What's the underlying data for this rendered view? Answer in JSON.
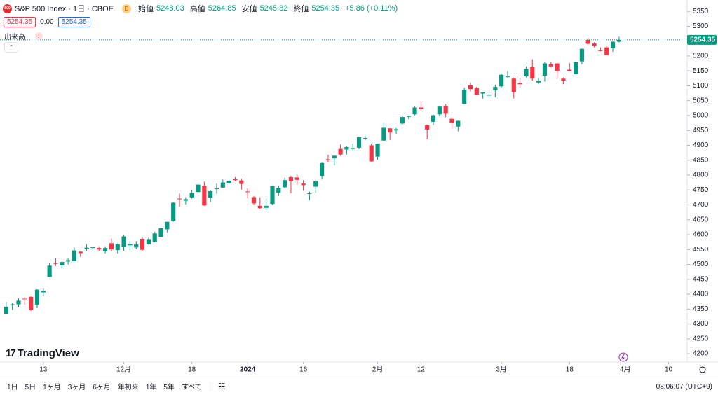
{
  "ui": {
    "symbol_icon": "500",
    "symbol": "S&P 500 Index · 1日 · CBOE",
    "badge": "D",
    "ohlc_labels": [
      "始値",
      "高値",
      "安値",
      "終値"
    ],
    "change": "+5.86 (+0.11%)",
    "price_boxes": [
      "5254.35",
      "0.00",
      "5254.35"
    ],
    "volume_label": "出来高",
    "alert": "!",
    "logo": "TradingView",
    "ranges": [
      "1日",
      "5日",
      "1ヶ月",
      "3ヶ月",
      "6ヶ月",
      "年初来",
      "1年",
      "5年",
      "すべて"
    ],
    "clock": "08:06:07 (UTC+9)"
  },
  "chart_data": {
    "type": "candlestick",
    "up_color": "#089981",
    "down_color": "#f23645",
    "grid": false,
    "ylim": [
      4172,
      5388
    ],
    "yticks": [
      4200,
      4250,
      4300,
      4350,
      4400,
      4450,
      4500,
      4550,
      4600,
      4650,
      4700,
      4750,
      4800,
      4850,
      4900,
      4950,
      5000,
      5050,
      5100,
      5150,
      5200,
      5250,
      5300,
      5350
    ],
    "xlim": [
      -1,
      110
    ],
    "xticks": [
      {
        "value": 6,
        "label": "13"
      },
      {
        "value": 19,
        "label": "12月"
      },
      {
        "value": 30,
        "label": "18"
      },
      {
        "value": 39,
        "label": "2024"
      },
      {
        "value": 48,
        "label": "16"
      },
      {
        "value": 60,
        "label": "2月"
      },
      {
        "value": 67,
        "label": "12"
      },
      {
        "value": 80,
        "label": "3月"
      },
      {
        "value": 91,
        "label": "18"
      },
      {
        "value": 100,
        "label": "4月"
      },
      {
        "value": 107,
        "label": "10"
      }
    ],
    "open": [
      4334,
      4364,
      4366,
      4385,
      4391,
      4365,
      4406,
      4458,
      4505,
      4497,
      4510,
      4511,
      4543,
      4553,
      4555,
      4555,
      4545,
      4571,
      4548,
      4559,
      4564,
      4557,
      4586,
      4568,
      4576,
      4593,
      4618,
      4646,
      4721,
      4714,
      4725,
      4743,
      4764,
      4724,
      4754,
      4758,
      4773,
      4786,
      4782,
      4745,
      4726,
      4697,
      4690,
      4703,
      4741,
      4759,
      4793,
      4792,
      4772,
      4739,
      4761,
      4797,
      4853,
      4856,
      4888,
      4886,
      4888,
      4892,
      4925,
      4900,
      4862,
      4916,
      4957,
      4950,
      4973,
      4996,
      5004,
      5027,
      4968,
      4979,
      5004,
      5032,
      4989,
      4963,
      5039,
      5101,
      5093,
      5074,
      5067,
      5085,
      5098,
      5131,
      5124,
      5109,
      5132,
      5164,
      5111,
      5134,
      5173,
      5175,
      5124,
      5154,
      5139,
      5182,
      5254,
      5242,
      5219,
      5229,
      5226,
      5248.03
    ],
    "high": [
      4374,
      4372,
      4386,
      4391,
      4393,
      4418,
      4421,
      4504,
      4521,
      4511,
      4521,
      4557,
      4542,
      4568,
      4560,
      4561,
      4561,
      4587,
      4570,
      4599,
      4574,
      4578,
      4590,
      4590,
      4610,
      4623,
      4643,
      4709,
      4738,
      4726,
      4749,
      4768,
      4778,
      4748,
      4772,
      4785,
      4785,
      4793,
      4788,
      4755,
      4729,
      4726,
      4721,
      4764,
      4765,
      4791,
      4798,
      4802,
      4783,
      4744,
      4785,
      4842,
      4868,
      4866,
      4903,
      4898,
      4906,
      4929,
      4931,
      4906,
      4906,
      4975,
      4957,
      4958,
      4999,
      5000,
      5030,
      5048,
      4970,
      5003,
      5032,
      5039,
      4994,
      4983,
      5094,
      5111,
      5097,
      5080,
      5077,
      5104,
      5140,
      5149,
      5127,
      5127,
      5165,
      5189,
      5124,
      5179,
      5179,
      5176,
      5128,
      5176,
      5180,
      5225,
      5261,
      5246,
      5229,
      5236,
      5249,
      5264.85
    ],
    "low": [
      4334,
      4347,
      4356,
      4365,
      4344,
      4353,
      4393,
      4458,
      4495,
      4487,
      4500,
      4511,
      4525,
      4545,
      4552,
      4546,
      4537,
      4546,
      4537,
      4546,
      4547,
      4551,
      4546,
      4566,
      4574,
      4593,
      4608,
      4643,
      4694,
      4702,
      4721,
      4743,
      4697,
      4709,
      4737,
      4758,
      4768,
      4780,
      4751,
      4722,
      4700,
      4687,
      4683,
      4700,
      4730,
      4756,
      4739,
      4768,
      4747,
      4715,
      4740,
      4785,
      4844,
      4832,
      4865,
      4869,
      4881,
      4887,
      4917,
      4845,
      4852,
      4915,
      4918,
      4938,
      4970,
      4988,
      5001,
      5016,
      4920,
      4968,
      4999,
      4995,
      4955,
      4947,
      5038,
      5081,
      5068,
      5057,
      5058,
      5061,
      5094,
      5128,
      5057,
      5092,
      5128,
      5117,
      5107,
      5114,
      5161,
      5123,
      5105,
      5149,
      5138,
      5172,
      5240,
      5229,
      5216,
      5203,
      5214,
      5245.82
    ],
    "close": [
      4358,
      4366,
      4378,
      4383,
      4347,
      4415,
      4411,
      4496,
      4502,
      4508,
      4514,
      4547,
      4538,
      4556,
      4559,
      4550,
      4555,
      4550,
      4568,
      4594,
      4569,
      4567,
      4549,
      4585,
      4604,
      4622,
      4643,
      4707,
      4719,
      4719,
      4740,
      4768,
      4698,
      4746,
      4755,
      4775,
      4781,
      4783,
      4770,
      4743,
      4705,
      4689,
      4697,
      4764,
      4757,
      4783,
      4780,
      4784,
      4766,
      4739,
      4780,
      4840,
      4850,
      4865,
      4869,
      4894,
      4891,
      4928,
      4925,
      4846,
      4906,
      4959,
      4943,
      4954,
      4995,
      4998,
      5027,
      5022,
      4953,
      5001,
      5030,
      5006,
      4976,
      4982,
      5087,
      5089,
      5070,
      5078,
      5070,
      5096,
      5137,
      5131,
      5079,
      5105,
      5157,
      5124,
      5117,
      5175,
      5165,
      5150,
      5117,
      5149,
      5179,
      5224,
      5241,
      5234,
      5218,
      5203,
      5248,
      5254.35
    ]
  }
}
